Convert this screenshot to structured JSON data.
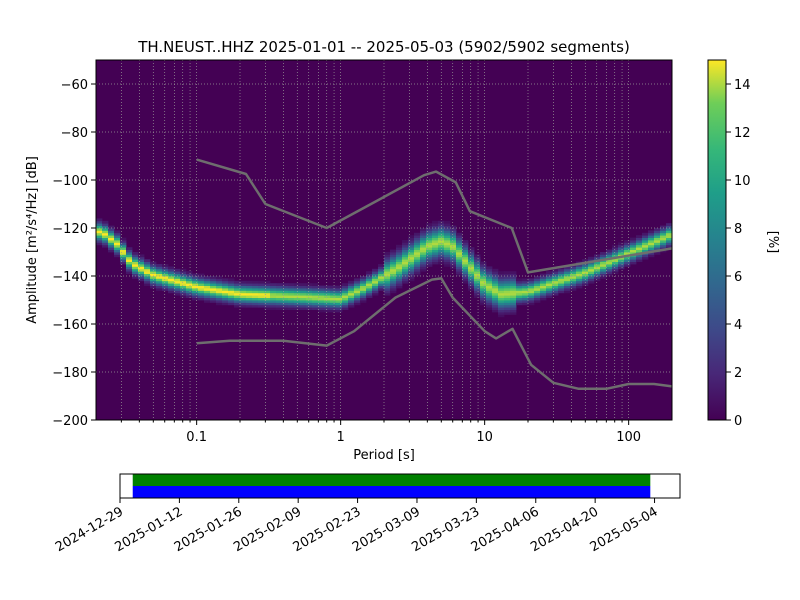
{
  "chart_data": [
    {
      "type": "heatmap",
      "title": "TH.NEUST..HHZ   2025-01-01 -- 2025-05-03  (5902/5902 segments)",
      "xlabel": "Period [s]",
      "ylabel": "Amplitude [m²/s⁴/Hz] [dB]",
      "x_scale": "log",
      "xlim": [
        0.02,
        200
      ],
      "ylim": [
        -200,
        -50
      ],
      "x_ticks": [
        {
          "value": 0.1,
          "label": "0.1"
        },
        {
          "value": 1,
          "label": "1"
        },
        {
          "value": 10,
          "label": "10"
        },
        {
          "value": 100,
          "label": "100"
        }
      ],
      "y_ticks": [
        -60,
        -80,
        -100,
        -120,
        -140,
        -160,
        -180,
        -200
      ],
      "grid": true,
      "colormap": "viridis",
      "colorbar": {
        "label": "[%]",
        "min": 0,
        "max": 15,
        "ticks": [
          0,
          2,
          4,
          6,
          8,
          10,
          12,
          14
        ]
      },
      "psd_mode": [
        {
          "period": 0.022,
          "db": -122
        },
        {
          "period": 0.028,
          "db": -127
        },
        {
          "period": 0.035,
          "db": -135
        },
        {
          "period": 0.05,
          "db": -140
        },
        {
          "period": 0.1,
          "db": -145
        },
        {
          "period": 0.2,
          "db": -148
        },
        {
          "period": 0.5,
          "db": -149
        },
        {
          "period": 1.0,
          "db": -150
        },
        {
          "period": 1.5,
          "db": -145
        },
        {
          "period": 2.5,
          "db": -137
        },
        {
          "period": 4.0,
          "db": -128
        },
        {
          "period": 5.0,
          "db": -126
        },
        {
          "period": 6.0,
          "db": -128
        },
        {
          "period": 8.0,
          "db": -137
        },
        {
          "period": 10.0,
          "db": -144
        },
        {
          "period": 13.0,
          "db": -148
        },
        {
          "period": 20.0,
          "db": -147
        },
        {
          "period": 50.0,
          "db": -139
        },
        {
          "period": 100.0,
          "db": -131
        },
        {
          "period": 200.0,
          "db": -123
        }
      ],
      "series": [
        {
          "points": [
            {
              "period": 0.1,
              "db": -91.5
            },
            {
              "period": 0.22,
              "db": -97.5
            },
            {
              "period": 0.3,
              "db": -110
            },
            {
              "period": 0.8,
              "db": -120
            },
            {
              "period": 3.8,
              "db": -98
            },
            {
              "period": 4.6,
              "db": -96.5
            },
            {
              "period": 6.3,
              "db": -101
            },
            {
              "period": 7.9,
              "db": -113
            },
            {
              "period": 15.4,
              "db": -120
            },
            {
              "period": 20,
              "db": -138.5
            },
            {
              "period": 200,
              "db": -128.5
            }
          ]
        },
        {
          "points": [
            {
              "period": 0.1,
              "db": -168
            },
            {
              "period": 0.17,
              "db": -167
            },
            {
              "period": 0.4,
              "db": -167
            },
            {
              "period": 0.8,
              "db": -169
            },
            {
              "period": 1.24,
              "db": -163
            },
            {
              "period": 2.4,
              "db": -149
            },
            {
              "period": 4.3,
              "db": -141.5
            },
            {
              "period": 5.0,
              "db": -141
            },
            {
              "period": 6.0,
              "db": -149
            },
            {
              "period": 10,
              "db": -163
            },
            {
              "period": 12,
              "db": -166
            },
            {
              "period": 15.6,
              "db": -162
            },
            {
              "period": 21,
              "db": -177
            },
            {
              "period": 30,
              "db": -184.5
            },
            {
              "period": 45,
              "db": -187
            },
            {
              "period": 70,
              "db": -187
            },
            {
              "period": 100,
              "db": -185
            },
            {
              "period": 150,
              "db": -185
            },
            {
              "period": 200,
              "db": -186
            }
          ]
        }
      ]
    },
    {
      "type": "timeline",
      "x_ticks": [
        "2024-12-29",
        "2025-01-12",
        "2025-01-26",
        "2025-02-09",
        "2025-02-23",
        "2025-03-09",
        "2025-03-23",
        "2025-04-06",
        "2025-04-20",
        "2025-05-04"
      ],
      "xlim": [
        "2024-12-29",
        "2025-05-10"
      ],
      "bars": [
        {
          "start": "2025-01-01",
          "end": "2025-05-03",
          "color": "#008000"
        },
        {
          "start": "2025-01-01",
          "end": "2025-05-03",
          "color": "#0000ff"
        }
      ]
    }
  ]
}
